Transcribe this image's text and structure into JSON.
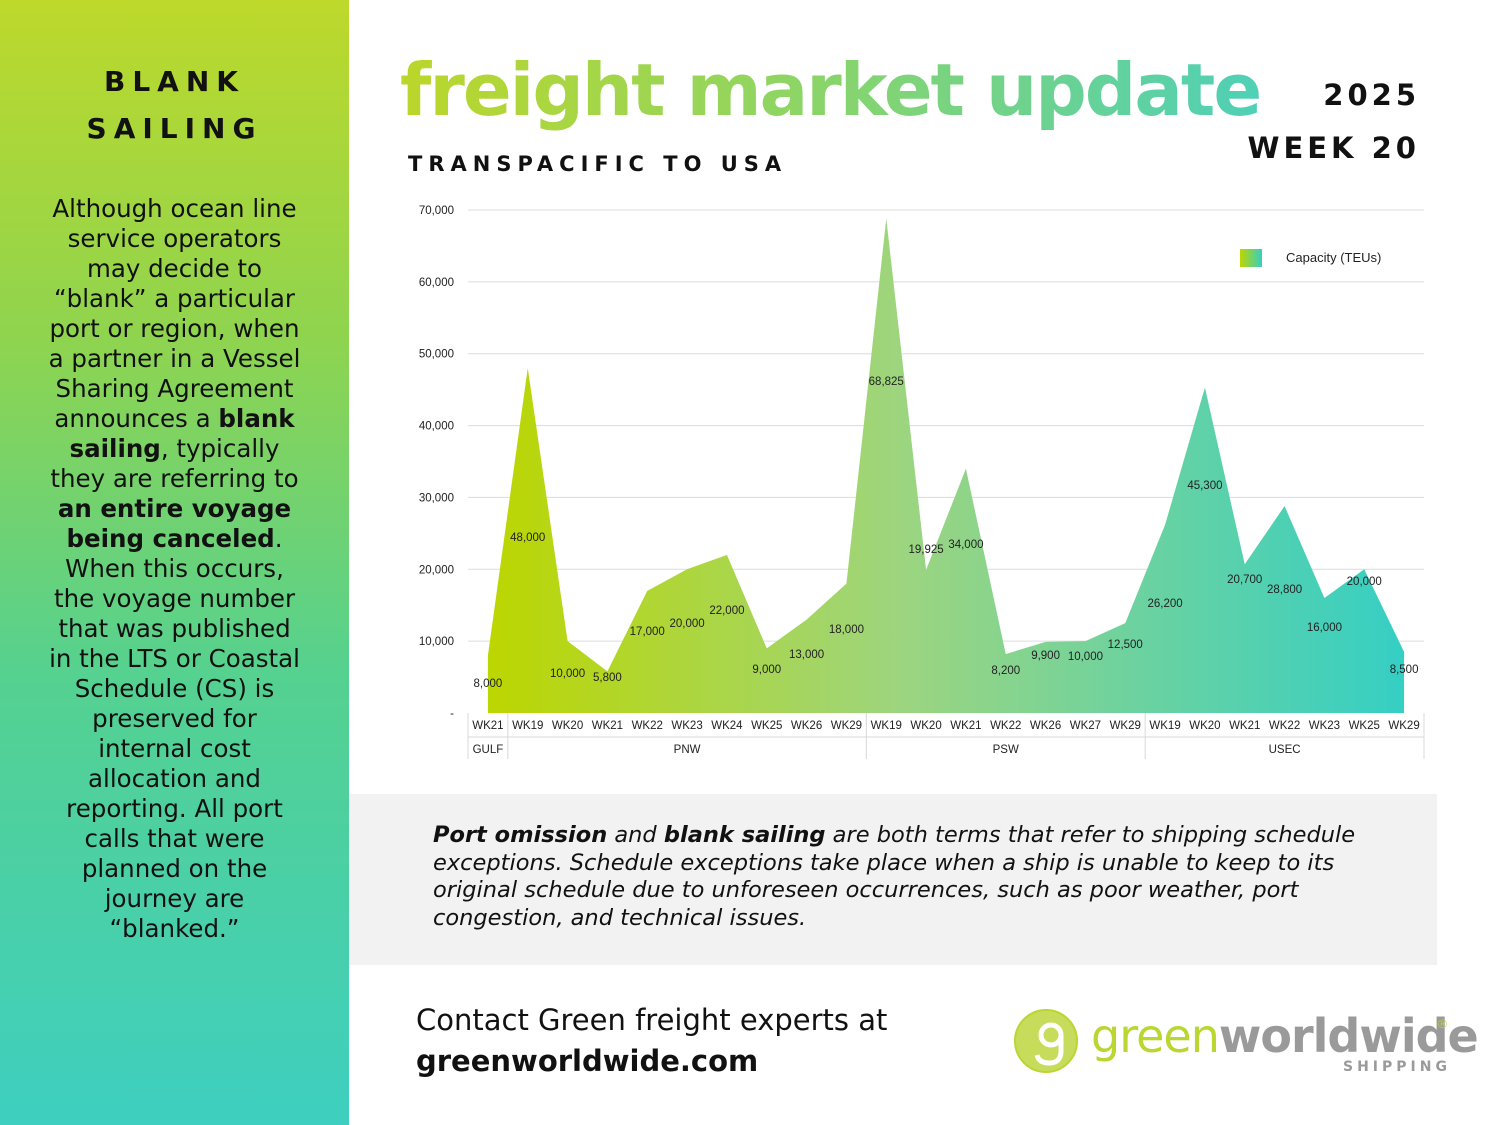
{
  "sidebar": {
    "title_line1": "BLANK",
    "title_line2": "SAILING",
    "body": {
      "p1": "Although ocean line service operators may decide to “blank” a particular port or region, when a partner in a Vessel Sharing Agreement announces a ",
      "b1": "blank sailing",
      "p2": ", typically they are referring to ",
      "b2": "an entire voyage being canceled",
      "p3": ". When this occurs, the voyage number that was published in the LTS or Coastal Schedule (CS) is preserved for internal cost allocation and reporting. All port calls that were planned on the journey are “blanked.”"
    }
  },
  "header": {
    "title": "freight market update",
    "subtitle": "TRANSPACIFIC TO USA",
    "year": "2025",
    "week": "WEEK 20"
  },
  "note": {
    "b1": "Port omission",
    "t1": " and ",
    "b2": "blank sailing",
    "t2": " are both terms that refer to shipping schedule exceptions. Schedule exceptions take place when a ship is unable to keep to its original schedule due to unforeseen occurrences, such as poor weather, port congestion, and technical issues."
  },
  "contact": {
    "line1": "Contact Green freight experts at",
    "url": "greenworldwide.com"
  },
  "logo": {
    "word1": "green",
    "word2": "worldwide",
    "reg": "®",
    "sub": "SHIPPING"
  },
  "chart_data": {
    "type": "area",
    "legend": "Capacity (TEUs)",
    "legend_position": "top-right",
    "gradient_colors": [
      "#bcd600",
      "#9dd57f",
      "#35cfc4"
    ],
    "ylim": [
      0,
      70000
    ],
    "yticks": [
      0,
      10000,
      20000,
      30000,
      40000,
      50000,
      60000,
      70000
    ],
    "ytick_labels": [
      "-",
      "10,000",
      "20,000",
      "30,000",
      "40,000",
      "50,000",
      "60,000",
      "70,000"
    ],
    "grid": true,
    "categories": [
      "WK21",
      "WK19",
      "WK20",
      "WK21",
      "WK22",
      "WK23",
      "WK24",
      "WK25",
      "WK26",
      "WK29",
      "WK19",
      "WK20",
      "WK21",
      "WK22",
      "WK26",
      "WK27",
      "WK29",
      "WK19",
      "WK20",
      "WK21",
      "WK22",
      "WK23",
      "WK25",
      "WK29"
    ],
    "values": [
      8000,
      48000,
      10000,
      5800,
      17000,
      20000,
      22000,
      9000,
      13000,
      18000,
      68825,
      19925,
      34000,
      8200,
      9900,
      10000,
      12500,
      26200,
      45300,
      20700,
      28800,
      16000,
      20000,
      8500
    ],
    "value_labels": [
      "8,000",
      "48,000",
      "10,000",
      "5,800",
      "17,000",
      "20,000",
      "22,000",
      "9,000",
      "13,000",
      "18,000",
      "68,825",
      "19,925",
      "34,000",
      "8,200",
      "9,900",
      "10,000",
      "12,500",
      "26,200",
      "45,300",
      "20,700",
      "28,800",
      "16,000",
      "20,000",
      "8,500"
    ],
    "groups": [
      {
        "name": "GULF",
        "start": 0,
        "end": 0
      },
      {
        "name": "PNW",
        "start": 1,
        "end": 9
      },
      {
        "name": "PSW",
        "start": 10,
        "end": 16
      },
      {
        "name": "USEC",
        "start": 17,
        "end": 23
      }
    ]
  }
}
